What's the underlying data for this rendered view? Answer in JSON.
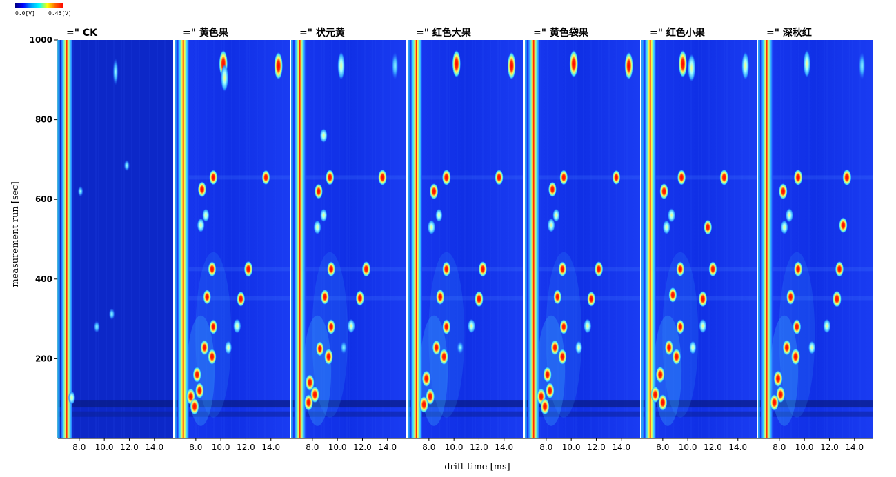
{
  "colorbar": {
    "min_label": "0.0[V]",
    "max_label": "0.45[V]",
    "stops": [
      "#000080",
      "#0000ff",
      "#00a0ff",
      "#00ffff",
      "#ffff00",
      "#ff6000",
      "#ff0000"
    ]
  },
  "chart_data": {
    "type": "heatmap",
    "xlabel": "drift time [ms]",
    "ylabel": "measurement run [sec]",
    "y_ticks": [
      200,
      400,
      600,
      800,
      1000
    ],
    "ylim": [
      0,
      1000
    ],
    "x_tick_labels": [
      "8.0",
      "10.0",
      "12.0",
      "14.0"
    ],
    "x_ticks": [
      8,
      10,
      12,
      14
    ],
    "xlim": [
      6.3,
      15.5
    ],
    "background_color": "#1030e8",
    "panels": [
      {
        "name": "=\" CK",
        "spots": [
          {
            "x": 7.4,
            "y": 102,
            "i": 0.6
          },
          {
            "x": 9.4,
            "y": 280,
            "i": 0.45
          },
          {
            "x": 10.6,
            "y": 312,
            "i": 0.4
          },
          {
            "x": 11.8,
            "y": 685,
            "i": 0.35
          },
          {
            "x": 8.1,
            "y": 620,
            "i": 0.3
          },
          {
            "x": 10.9,
            "y": 920,
            "i": 0.3
          }
        ]
      },
      {
        "name": "=\" 黄色果",
        "spots": [
          {
            "x": 10.2,
            "y": 940,
            "i": 0.95
          },
          {
            "x": 10.3,
            "y": 905,
            "i": 0.7
          },
          {
            "x": 14.6,
            "y": 935,
            "i": 0.95
          },
          {
            "x": 9.4,
            "y": 655,
            "i": 0.85
          },
          {
            "x": 13.6,
            "y": 655,
            "i": 0.8
          },
          {
            "x": 8.5,
            "y": 625,
            "i": 0.9
          },
          {
            "x": 8.8,
            "y": 560,
            "i": 0.6
          },
          {
            "x": 8.4,
            "y": 535,
            "i": 0.7
          },
          {
            "x": 9.3,
            "y": 425,
            "i": 0.85
          },
          {
            "x": 12.2,
            "y": 425,
            "i": 0.95
          },
          {
            "x": 8.9,
            "y": 355,
            "i": 0.8
          },
          {
            "x": 11.6,
            "y": 350,
            "i": 0.85
          },
          {
            "x": 9.4,
            "y": 280,
            "i": 0.8
          },
          {
            "x": 11.3,
            "y": 282,
            "i": 0.75
          },
          {
            "x": 8.7,
            "y": 228,
            "i": 0.85
          },
          {
            "x": 9.3,
            "y": 205,
            "i": 0.9
          },
          {
            "x": 10.6,
            "y": 228,
            "i": 0.6
          },
          {
            "x": 8.1,
            "y": 160,
            "i": 0.9
          },
          {
            "x": 7.6,
            "y": 105,
            "i": 1.0
          },
          {
            "x": 8.3,
            "y": 120,
            "i": 0.95
          },
          {
            "x": 7.9,
            "y": 80,
            "i": 1.0
          }
        ]
      },
      {
        "name": "=\" 状元黄",
        "spots": [
          {
            "x": 10.3,
            "y": 935,
            "i": 0.65
          },
          {
            "x": 14.6,
            "y": 935,
            "i": 0.55
          },
          {
            "x": 8.9,
            "y": 760,
            "i": 0.7
          },
          {
            "x": 9.4,
            "y": 655,
            "i": 0.9
          },
          {
            "x": 13.6,
            "y": 655,
            "i": 0.95
          },
          {
            "x": 8.5,
            "y": 620,
            "i": 0.85
          },
          {
            "x": 8.9,
            "y": 560,
            "i": 0.6
          },
          {
            "x": 8.4,
            "y": 530,
            "i": 0.7
          },
          {
            "x": 9.5,
            "y": 425,
            "i": 0.85
          },
          {
            "x": 12.3,
            "y": 425,
            "i": 0.9
          },
          {
            "x": 9.0,
            "y": 355,
            "i": 0.85
          },
          {
            "x": 11.8,
            "y": 352,
            "i": 0.9
          },
          {
            "x": 9.5,
            "y": 280,
            "i": 0.85
          },
          {
            "x": 11.1,
            "y": 282,
            "i": 0.7
          },
          {
            "x": 8.6,
            "y": 225,
            "i": 0.8
          },
          {
            "x": 9.3,
            "y": 205,
            "i": 0.95
          },
          {
            "x": 10.5,
            "y": 228,
            "i": 0.55
          },
          {
            "x": 7.8,
            "y": 140,
            "i": 1.0
          },
          {
            "x": 8.2,
            "y": 110,
            "i": 1.0
          },
          {
            "x": 7.7,
            "y": 90,
            "i": 1.0
          }
        ]
      },
      {
        "name": "=\" 红色大果",
        "spots": [
          {
            "x": 10.2,
            "y": 940,
            "i": 0.9
          },
          {
            "x": 14.6,
            "y": 935,
            "i": 0.85
          },
          {
            "x": 9.4,
            "y": 655,
            "i": 0.95
          },
          {
            "x": 13.6,
            "y": 655,
            "i": 0.9
          },
          {
            "x": 8.4,
            "y": 620,
            "i": 0.95
          },
          {
            "x": 8.8,
            "y": 560,
            "i": 0.6
          },
          {
            "x": 8.2,
            "y": 530,
            "i": 0.75
          },
          {
            "x": 9.4,
            "y": 425,
            "i": 0.85
          },
          {
            "x": 12.3,
            "y": 425,
            "i": 0.9
          },
          {
            "x": 8.9,
            "y": 355,
            "i": 0.9
          },
          {
            "x": 12.0,
            "y": 350,
            "i": 0.95
          },
          {
            "x": 9.4,
            "y": 280,
            "i": 0.85
          },
          {
            "x": 11.4,
            "y": 282,
            "i": 0.7
          },
          {
            "x": 8.6,
            "y": 228,
            "i": 0.85
          },
          {
            "x": 9.2,
            "y": 205,
            "i": 0.95
          },
          {
            "x": 10.5,
            "y": 228,
            "i": 0.55
          },
          {
            "x": 7.8,
            "y": 150,
            "i": 1.0
          },
          {
            "x": 8.1,
            "y": 105,
            "i": 1.0
          },
          {
            "x": 7.6,
            "y": 85,
            "i": 1.0
          }
        ]
      },
      {
        "name": "=\" 黄色袋果",
        "spots": [
          {
            "x": 10.2,
            "y": 940,
            "i": 0.95
          },
          {
            "x": 14.6,
            "y": 935,
            "i": 0.9
          },
          {
            "x": 9.4,
            "y": 655,
            "i": 0.85
          },
          {
            "x": 13.6,
            "y": 655,
            "i": 0.8
          },
          {
            "x": 8.5,
            "y": 625,
            "i": 0.85
          },
          {
            "x": 8.8,
            "y": 560,
            "i": 0.6
          },
          {
            "x": 8.4,
            "y": 535,
            "i": 0.7
          },
          {
            "x": 9.3,
            "y": 425,
            "i": 0.85
          },
          {
            "x": 12.2,
            "y": 425,
            "i": 0.9
          },
          {
            "x": 8.9,
            "y": 355,
            "i": 0.8
          },
          {
            "x": 11.6,
            "y": 350,
            "i": 0.85
          },
          {
            "x": 9.4,
            "y": 280,
            "i": 0.8
          },
          {
            "x": 11.3,
            "y": 282,
            "i": 0.75
          },
          {
            "x": 8.7,
            "y": 228,
            "i": 0.85
          },
          {
            "x": 9.3,
            "y": 205,
            "i": 0.9
          },
          {
            "x": 10.6,
            "y": 228,
            "i": 0.6
          },
          {
            "x": 8.1,
            "y": 160,
            "i": 0.9
          },
          {
            "x": 7.6,
            "y": 105,
            "i": 1.0
          },
          {
            "x": 8.3,
            "y": 120,
            "i": 0.95
          },
          {
            "x": 7.9,
            "y": 80,
            "i": 1.0
          }
        ]
      },
      {
        "name": "=\" 红色小果",
        "spots": [
          {
            "x": 9.6,
            "y": 940,
            "i": 0.9
          },
          {
            "x": 10.3,
            "y": 930,
            "i": 0.75
          },
          {
            "x": 14.6,
            "y": 935,
            "i": 0.7
          },
          {
            "x": 9.5,
            "y": 655,
            "i": 0.9
          },
          {
            "x": 12.9,
            "y": 655,
            "i": 0.95
          },
          {
            "x": 8.1,
            "y": 620,
            "i": 0.95
          },
          {
            "x": 8.7,
            "y": 560,
            "i": 0.7
          },
          {
            "x": 11.6,
            "y": 530,
            "i": 0.85
          },
          {
            "x": 8.3,
            "y": 530,
            "i": 0.7
          },
          {
            "x": 9.4,
            "y": 425,
            "i": 0.85
          },
          {
            "x": 12.0,
            "y": 425,
            "i": 0.85
          },
          {
            "x": 8.8,
            "y": 360,
            "i": 0.85
          },
          {
            "x": 11.2,
            "y": 350,
            "i": 0.95
          },
          {
            "x": 9.4,
            "y": 280,
            "i": 0.8
          },
          {
            "x": 11.2,
            "y": 282,
            "i": 0.7
          },
          {
            "x": 8.5,
            "y": 228,
            "i": 0.9
          },
          {
            "x": 9.1,
            "y": 205,
            "i": 0.95
          },
          {
            "x": 10.4,
            "y": 228,
            "i": 0.6
          },
          {
            "x": 7.8,
            "y": 160,
            "i": 1.0
          },
          {
            "x": 7.4,
            "y": 110,
            "i": 1.0
          },
          {
            "x": 8.0,
            "y": 90,
            "i": 1.0
          }
        ]
      },
      {
        "name": "=\" 深秋红",
        "spots": [
          {
            "x": 10.2,
            "y": 940,
            "i": 0.6
          },
          {
            "x": 14.6,
            "y": 935,
            "i": 0.5
          },
          {
            "x": 9.5,
            "y": 655,
            "i": 0.95
          },
          {
            "x": 13.4,
            "y": 655,
            "i": 1.0
          },
          {
            "x": 8.3,
            "y": 620,
            "i": 0.95
          },
          {
            "x": 8.8,
            "y": 560,
            "i": 0.7
          },
          {
            "x": 13.1,
            "y": 535,
            "i": 0.9
          },
          {
            "x": 8.4,
            "y": 530,
            "i": 0.7
          },
          {
            "x": 9.5,
            "y": 425,
            "i": 0.9
          },
          {
            "x": 12.8,
            "y": 425,
            "i": 0.9
          },
          {
            "x": 8.9,
            "y": 355,
            "i": 0.9
          },
          {
            "x": 12.6,
            "y": 350,
            "i": 1.0
          },
          {
            "x": 9.4,
            "y": 280,
            "i": 0.85
          },
          {
            "x": 11.8,
            "y": 282,
            "i": 0.7
          },
          {
            "x": 8.6,
            "y": 228,
            "i": 0.9
          },
          {
            "x": 9.3,
            "y": 205,
            "i": 1.0
          },
          {
            "x": 10.6,
            "y": 228,
            "i": 0.6
          },
          {
            "x": 7.9,
            "y": 150,
            "i": 1.0
          },
          {
            "x": 8.1,
            "y": 110,
            "i": 1.0
          },
          {
            "x": 7.6,
            "y": 90,
            "i": 1.0
          }
        ]
      }
    ]
  }
}
